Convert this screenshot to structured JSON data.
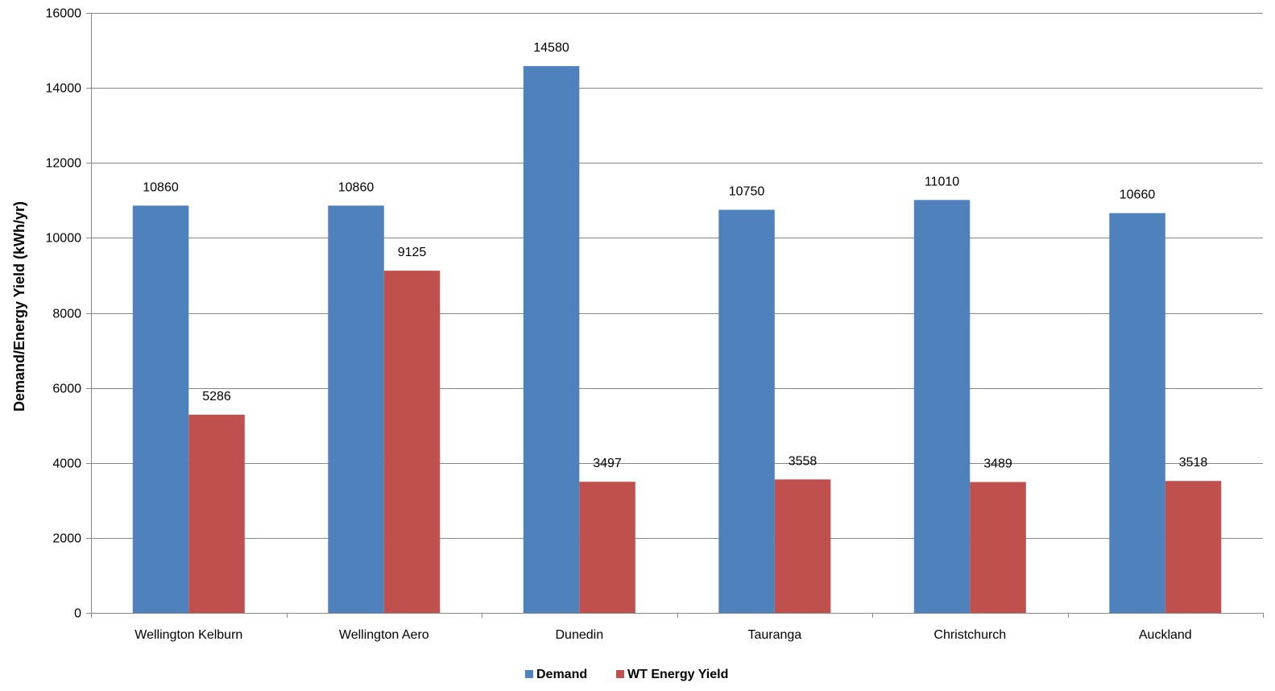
{
  "chart_data": {
    "type": "bar",
    "title": "",
    "xlabel": "",
    "ylabel": "Demand/Energy Yield (kWh/yr)",
    "ylim": [
      0,
      16000
    ],
    "yticks": [
      0,
      2000,
      4000,
      6000,
      8000,
      10000,
      12000,
      14000,
      16000
    ],
    "grid": true,
    "legend_position": "bottom",
    "categories": [
      "Wellington Kelburn",
      "Wellington Aero",
      "Dunedin",
      "Tauranga",
      "Christchurch",
      "Auckland"
    ],
    "series": [
      {
        "name": "Demand",
        "color": "#4F81BD",
        "values": [
          10860,
          10860,
          14580,
          10750,
          11010,
          10660
        ]
      },
      {
        "name": "WT Energy Yield",
        "color": "#C0504D",
        "values": [
          5286,
          9125,
          3497,
          3558,
          3489,
          3518
        ]
      }
    ]
  }
}
